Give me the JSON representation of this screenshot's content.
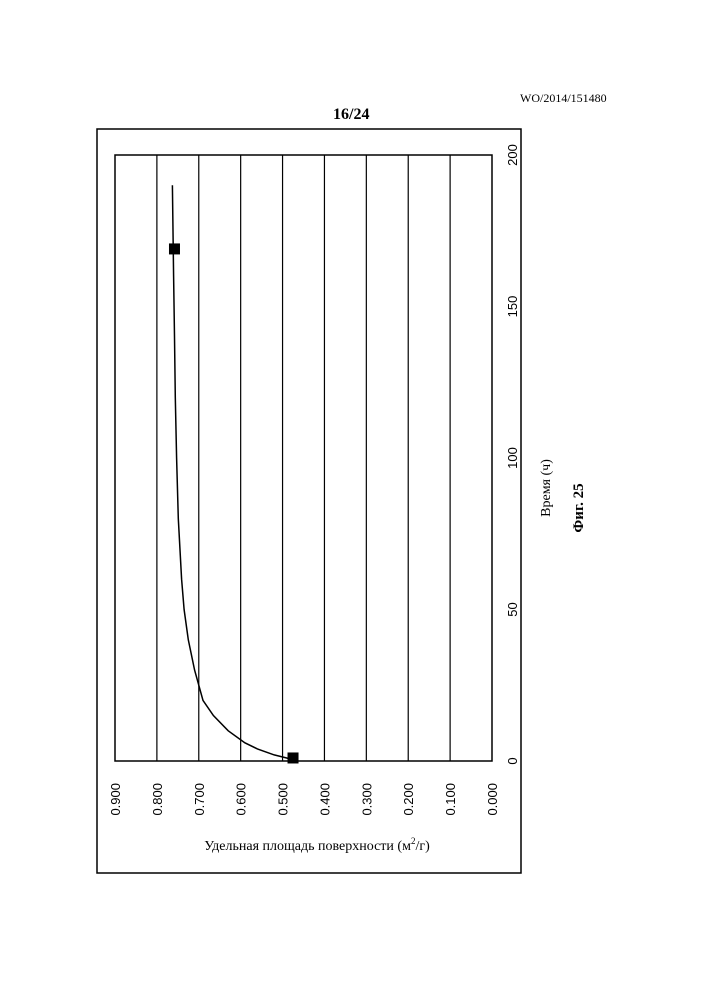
{
  "header": {
    "doc_id": "WO/2014/151480",
    "page": "16/24"
  },
  "figure": {
    "caption": "Фиг. 25"
  },
  "chart_data": {
    "type": "scatter",
    "xlabel": "Время (ч)",
    "ylabel": "Удельная площадь поверхности (м²/г)",
    "ylabel_base": "Удельная площадь поверхности (м",
    "ylabel_sup": "2",
    "ylabel_tail": "/г)",
    "xlim": [
      0,
      200
    ],
    "ylim": [
      0,
      0.9
    ],
    "x_ticks": [
      "0",
      "50",
      "100",
      "150",
      "200"
    ],
    "y_ticks": [
      "0.000",
      "0.100",
      "0.200",
      "0.300",
      "0.400",
      "0.500",
      "0.600",
      "0.700",
      "0.800",
      "0.900"
    ],
    "grid": true,
    "orientation": "rotated 90° counter-clockwise on page",
    "points": [
      {
        "x": 1,
        "y": 0.475
      },
      {
        "x": 169,
        "y": 0.758
      }
    ],
    "fit_curve": {
      "x": [
        0,
        1,
        2,
        4,
        6,
        10,
        15,
        20,
        30,
        40,
        50,
        60,
        80,
        100,
        120,
        140,
        160,
        180,
        190
      ],
      "y": [
        0.47,
        0.49,
        0.52,
        0.56,
        0.59,
        0.63,
        0.665,
        0.69,
        0.71,
        0.725,
        0.735,
        0.741,
        0.749,
        0.753,
        0.756,
        0.758,
        0.76,
        0.762,
        0.763
      ]
    },
    "marker_color": "#000000",
    "line_color": "#000000"
  }
}
